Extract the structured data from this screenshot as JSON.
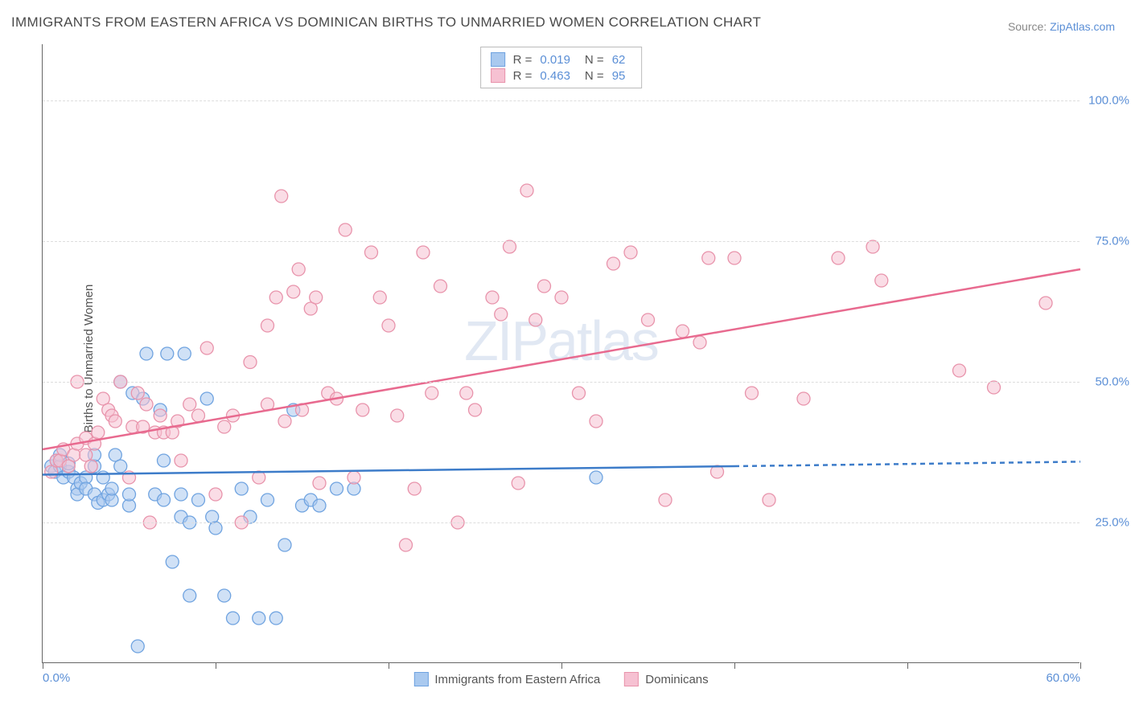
{
  "title": "IMMIGRANTS FROM EASTERN AFRICA VS DOMINICAN BIRTHS TO UNMARRIED WOMEN CORRELATION CHART",
  "source_prefix": "Source: ",
  "source_link": "ZipAtlas.com",
  "watermark_bold": "ZIP",
  "watermark_light": "atlas",
  "y_axis_label": "Births to Unmarried Women",
  "chart": {
    "type": "scatter",
    "xlim": [
      0,
      60
    ],
    "ylim": [
      0,
      110
    ],
    "x_ticks": [
      0,
      10,
      20,
      30,
      40,
      50,
      60
    ],
    "x_tick_labels": {
      "0": "0.0%",
      "60": "60.0%"
    },
    "y_ticks": [
      25,
      50,
      75,
      100
    ],
    "y_tick_labels": [
      "25.0%",
      "50.0%",
      "75.0%",
      "100.0%"
    ],
    "grid_color": "#dddddd",
    "background_color": "#ffffff",
    "marker_radius": 8,
    "marker_opacity": 0.55,
    "line_width": 2.5,
    "series": [
      {
        "name": "Immigrants from Eastern Africa",
        "color_stroke": "#6fa3e0",
        "color_fill": "#a9c9ef",
        "line_color": "#3d7cc9",
        "R": "0.019",
        "N": "62",
        "trend": {
          "x1": 0,
          "y1": 33.5,
          "x2": 40,
          "y2": 35,
          "dash_x2": 60,
          "dash_y2": 35.8
        },
        "points": [
          [
            0.5,
            35
          ],
          [
            0.7,
            34
          ],
          [
            0.8,
            36
          ],
          [
            1,
            35
          ],
          [
            1,
            37
          ],
          [
            1.2,
            33
          ],
          [
            1.5,
            34
          ],
          [
            1.5,
            35.5
          ],
          [
            1.8,
            33
          ],
          [
            2,
            31
          ],
          [
            2,
            30
          ],
          [
            2.2,
            32
          ],
          [
            2.5,
            33
          ],
          [
            2.5,
            31
          ],
          [
            3,
            35
          ],
          [
            3,
            37
          ],
          [
            3,
            30
          ],
          [
            3.2,
            28.5
          ],
          [
            3.5,
            29
          ],
          [
            3.5,
            33
          ],
          [
            3.8,
            30
          ],
          [
            4,
            29
          ],
          [
            4,
            31
          ],
          [
            4.2,
            37
          ],
          [
            4.5,
            50
          ],
          [
            4.5,
            35
          ],
          [
            5,
            28
          ],
          [
            5,
            30
          ],
          [
            5.2,
            48
          ],
          [
            5.5,
            3
          ],
          [
            5.8,
            47
          ],
          [
            6,
            55
          ],
          [
            6.5,
            30
          ],
          [
            6.8,
            45
          ],
          [
            7,
            29
          ],
          [
            7,
            36
          ],
          [
            7.2,
            55
          ],
          [
            7.5,
            18
          ],
          [
            8,
            30
          ],
          [
            8,
            26
          ],
          [
            8.2,
            55
          ],
          [
            8.5,
            25
          ],
          [
            8.5,
            12
          ],
          [
            9,
            29
          ],
          [
            9.5,
            47
          ],
          [
            9.8,
            26
          ],
          [
            10,
            24
          ],
          [
            10.5,
            12
          ],
          [
            11,
            8
          ],
          [
            11.5,
            31
          ],
          [
            12,
            26
          ],
          [
            12.5,
            8
          ],
          [
            13,
            29
          ],
          [
            13.5,
            8
          ],
          [
            14,
            21
          ],
          [
            14.5,
            45
          ],
          [
            15,
            28
          ],
          [
            15.5,
            29
          ],
          [
            16,
            28
          ],
          [
            17,
            31
          ],
          [
            18,
            31
          ],
          [
            32,
            33
          ]
        ]
      },
      {
        "name": "Dominicans",
        "color_stroke": "#e893ab",
        "color_fill": "#f6c1d2",
        "line_color": "#e86a8f",
        "R": "0.463",
        "N": "95",
        "trend": {
          "x1": 0,
          "y1": 38,
          "x2": 60,
          "y2": 70
        },
        "points": [
          [
            0.5,
            34
          ],
          [
            0.8,
            36
          ],
          [
            1,
            36
          ],
          [
            1.2,
            38
          ],
          [
            1.5,
            35
          ],
          [
            1.8,
            37
          ],
          [
            2,
            39
          ],
          [
            2,
            50
          ],
          [
            2.5,
            37
          ],
          [
            2.5,
            40
          ],
          [
            2.8,
            35
          ],
          [
            3,
            39
          ],
          [
            3.2,
            41
          ],
          [
            3.5,
            47
          ],
          [
            3.8,
            45
          ],
          [
            4,
            44
          ],
          [
            4.2,
            43
          ],
          [
            4.5,
            50
          ],
          [
            5,
            33
          ],
          [
            5.2,
            42
          ],
          [
            5.5,
            48
          ],
          [
            5.8,
            42
          ],
          [
            6,
            46
          ],
          [
            6.2,
            25
          ],
          [
            6.5,
            41
          ],
          [
            6.8,
            44
          ],
          [
            7,
            41
          ],
          [
            7.5,
            41
          ],
          [
            7.8,
            43
          ],
          [
            8,
            36
          ],
          [
            8.5,
            46
          ],
          [
            9,
            44
          ],
          [
            9.5,
            56
          ],
          [
            10,
            30
          ],
          [
            10.5,
            42
          ],
          [
            11,
            44
          ],
          [
            11.5,
            25
          ],
          [
            12,
            53.5
          ],
          [
            12.5,
            33
          ],
          [
            13,
            46
          ],
          [
            13,
            60
          ],
          [
            13.5,
            65
          ],
          [
            13.8,
            83
          ],
          [
            14,
            43
          ],
          [
            14.5,
            66
          ],
          [
            14.8,
            70
          ],
          [
            15,
            45
          ],
          [
            15.5,
            63
          ],
          [
            15.8,
            65
          ],
          [
            16,
            32
          ],
          [
            16.5,
            48
          ],
          [
            17,
            47
          ],
          [
            17.5,
            77
          ],
          [
            18,
            33
          ],
          [
            18.5,
            45
          ],
          [
            19,
            73
          ],
          [
            19.5,
            65
          ],
          [
            20,
            60
          ],
          [
            20.5,
            44
          ],
          [
            21,
            21
          ],
          [
            21.5,
            31
          ],
          [
            22,
            73
          ],
          [
            22.5,
            48
          ],
          [
            23,
            67
          ],
          [
            24,
            25
          ],
          [
            24.5,
            48
          ],
          [
            25,
            45
          ],
          [
            26,
            65
          ],
          [
            26.5,
            62
          ],
          [
            27,
            74
          ],
          [
            27.5,
            32
          ],
          [
            28,
            84
          ],
          [
            28.5,
            61
          ],
          [
            29,
            67
          ],
          [
            30,
            65
          ],
          [
            31,
            48
          ],
          [
            32,
            43
          ],
          [
            33,
            71
          ],
          [
            34,
            73
          ],
          [
            35,
            61
          ],
          [
            36,
            29
          ],
          [
            37,
            59
          ],
          [
            38,
            57
          ],
          [
            38.5,
            72
          ],
          [
            39,
            34
          ],
          [
            40,
            72
          ],
          [
            41,
            48
          ],
          [
            42,
            29
          ],
          [
            44,
            47
          ],
          [
            46,
            72
          ],
          [
            48,
            74
          ],
          [
            48.5,
            68
          ],
          [
            53,
            52
          ],
          [
            55,
            49
          ],
          [
            58,
            64
          ]
        ]
      }
    ]
  },
  "legend_bottom": [
    {
      "label": "Immigrants from Eastern Africa",
      "fill": "#a9c9ef",
      "stroke": "#6fa3e0"
    },
    {
      "label": "Dominicans",
      "fill": "#f6c1d2",
      "stroke": "#e893ab"
    }
  ]
}
